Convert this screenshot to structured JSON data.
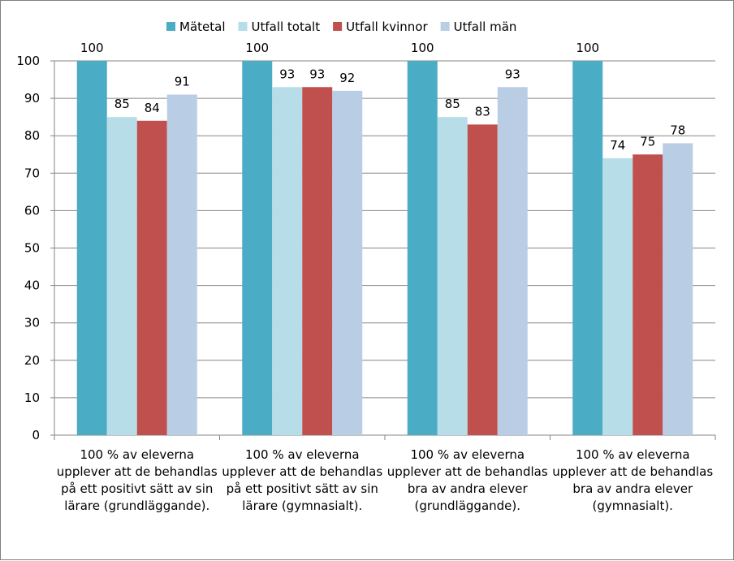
{
  "chart_data": {
    "type": "bar",
    "title": "",
    "xlabel": "",
    "ylabel": "",
    "ylim": [
      0,
      100
    ],
    "yticks": [
      0,
      10,
      20,
      30,
      40,
      50,
      60,
      70,
      80,
      90,
      100
    ],
    "grid": true,
    "legend_position": "top",
    "categories": [
      "100 % av eleverna upplever att de behandlas på ett positivt sätt av sin lärare (grundläggande).",
      "100 % av eleverna upplever att de behandlas på ett positivt sätt av sin lärare (gymnasialt).",
      "100 % av eleverna upplever att de behandlas bra av andra elever (grundläggande).",
      "100 % av eleverna upplever att de behandlas bra av andra elever (gymnasialt)."
    ],
    "series": [
      {
        "name": "Mätetal",
        "color": "#4bacc6",
        "values": [
          100,
          100,
          100,
          100
        ]
      },
      {
        "name": "Utfall totalt",
        "color": "#b7dee8",
        "values": [
          85,
          93,
          85,
          74
        ]
      },
      {
        "name": "Utfall kvinnor",
        "color": "#c0504d",
        "values": [
          84,
          93,
          83,
          75
        ]
      },
      {
        "name": "Utfall män",
        "color": "#b9cde5",
        "values": [
          91,
          92,
          93,
          78
        ]
      }
    ]
  }
}
